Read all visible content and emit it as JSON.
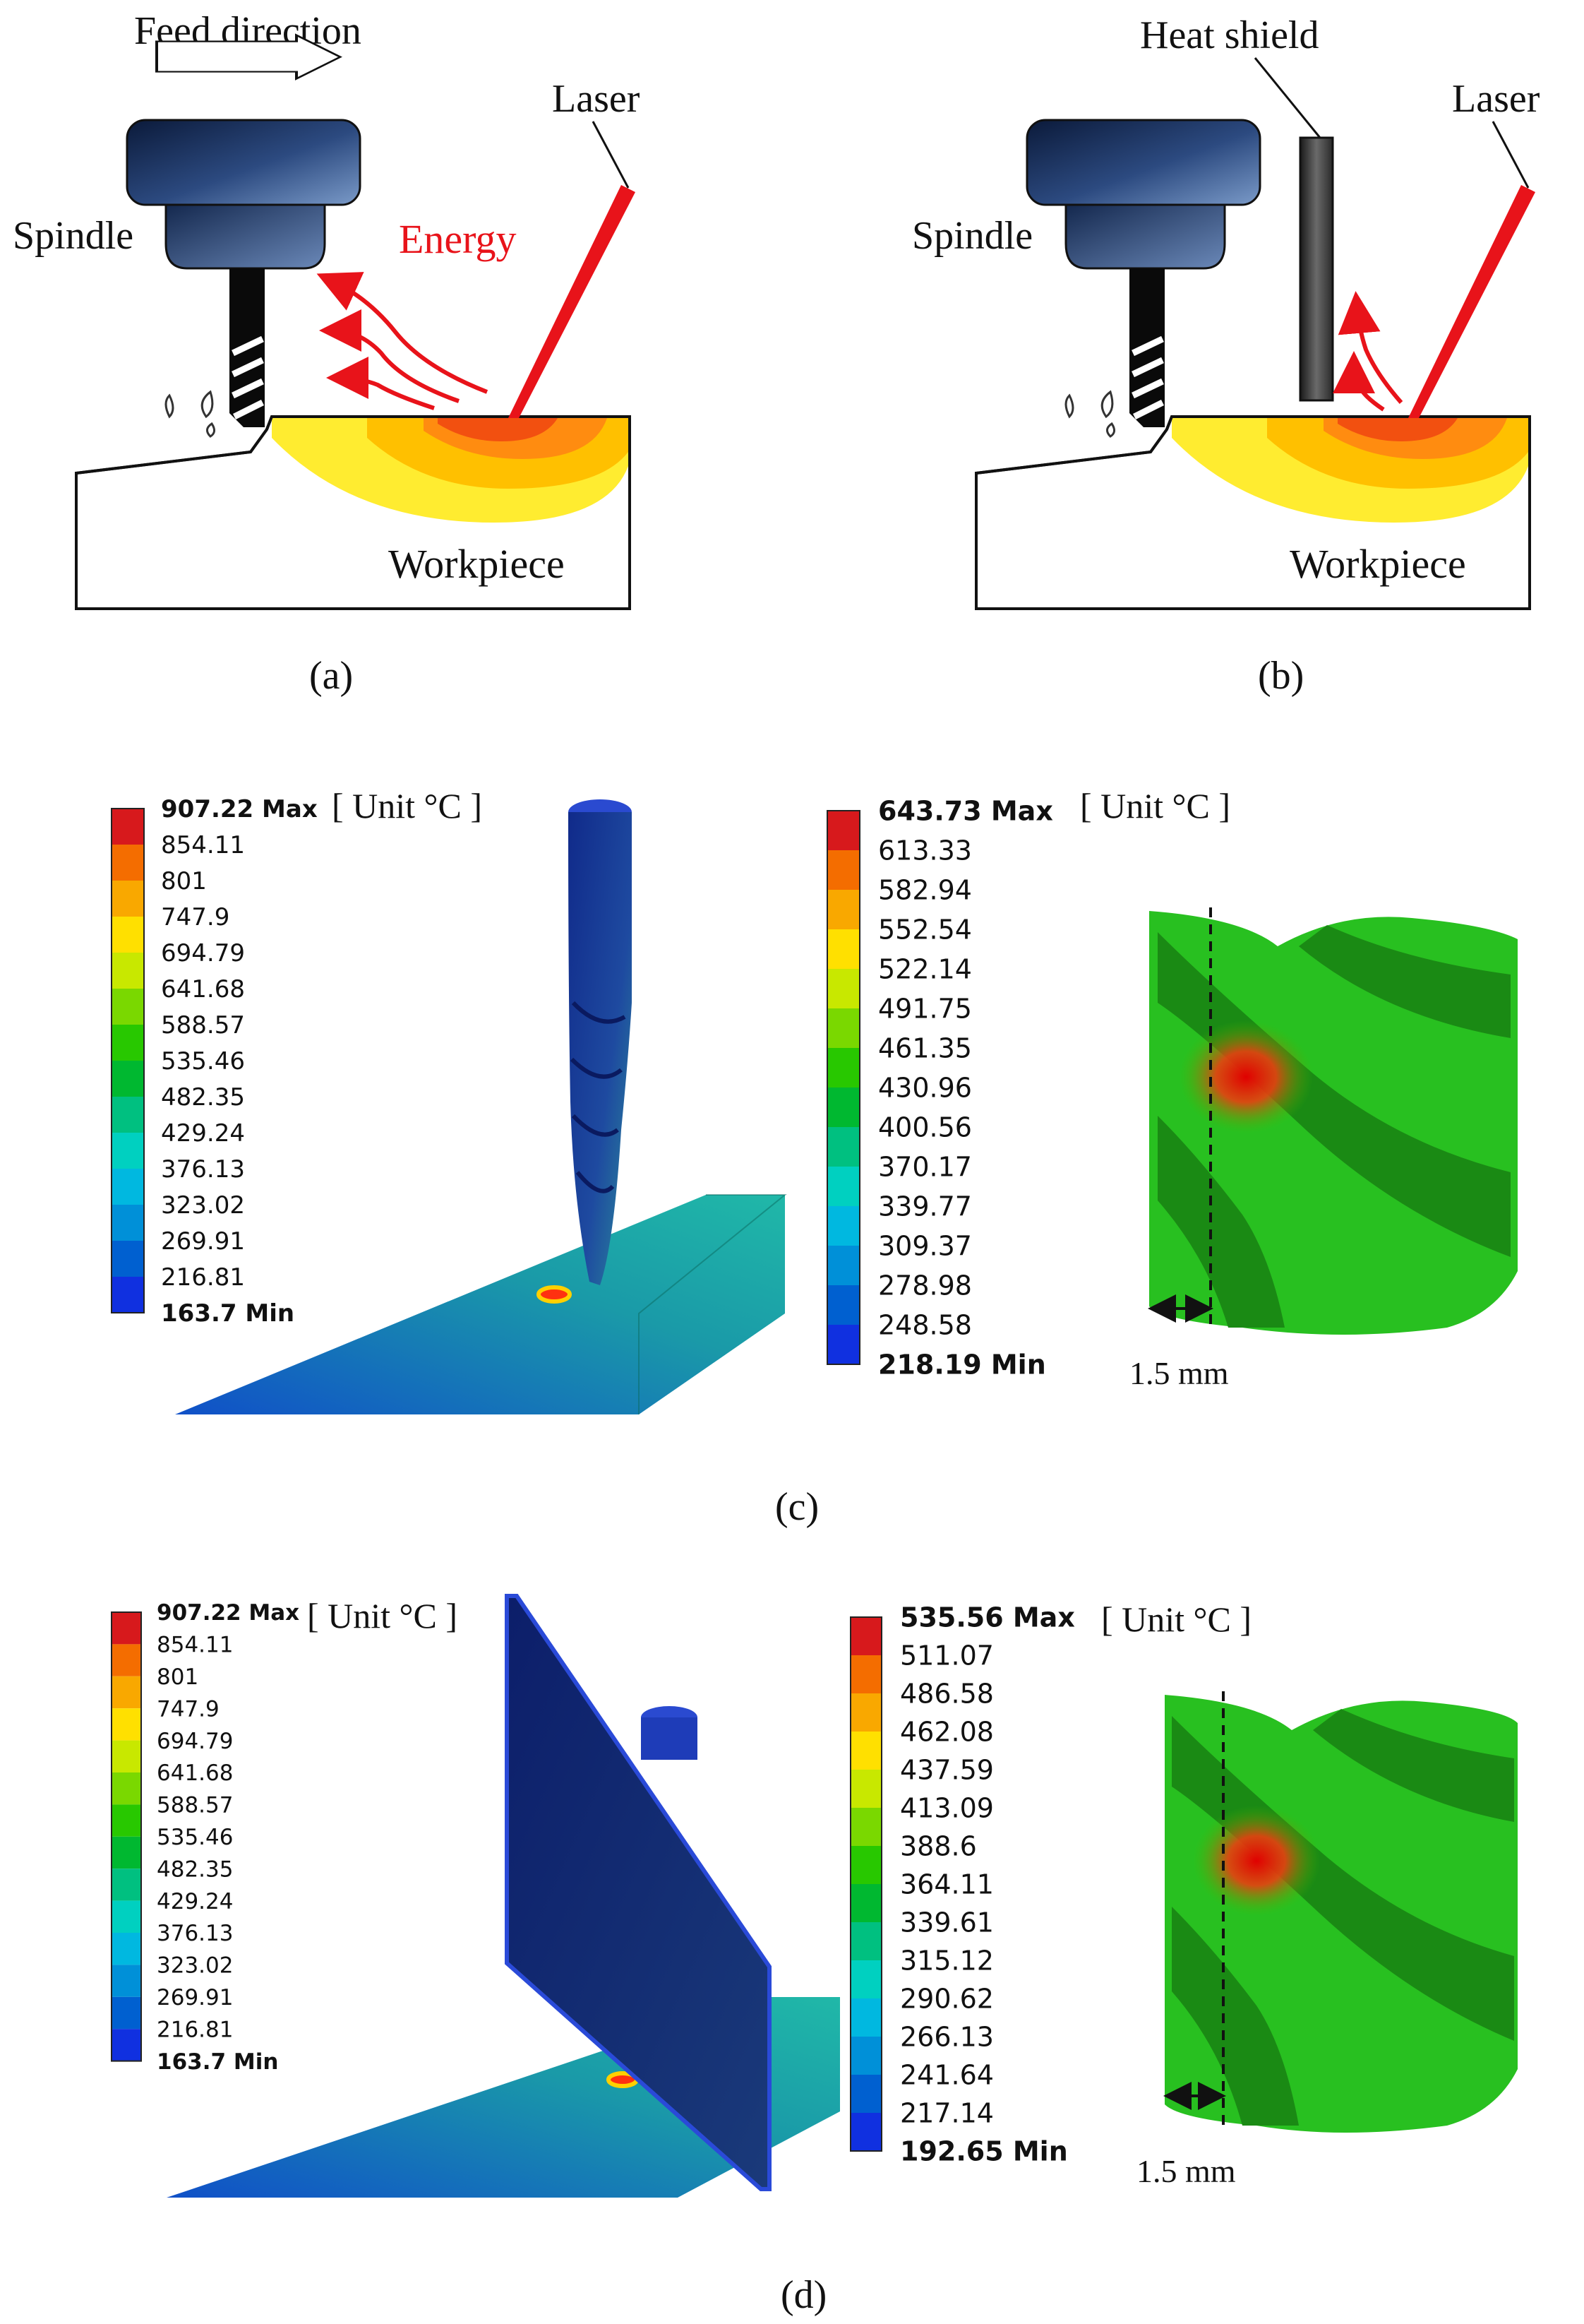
{
  "panel_a": {
    "caption": "(a)",
    "feed_direction": "Feed direction",
    "spindle": "Spindle",
    "laser": "Laser",
    "energy": "Energy",
    "workpiece": "Workpiece"
  },
  "panel_b": {
    "caption": "(b)",
    "heat_shield": "Heat shield",
    "spindle": "Spindle",
    "laser": "Laser",
    "workpiece": "Workpiece"
  },
  "panel_c": {
    "caption": "(c)",
    "unit": "[ Unit °C ]",
    "dimension": "1.5 mm",
    "legend_workpiece": [
      "907.22 Max",
      "854.11",
      "801",
      "747.9",
      "694.79",
      "641.68",
      "588.57",
      "535.46",
      "482.35",
      "429.24",
      "376.13",
      "323.02",
      "269.91",
      "216.81",
      "163.7 Min"
    ],
    "legend_tool": [
      "643.73 Max",
      "613.33",
      "582.94",
      "552.54",
      "522.14",
      "491.75",
      "461.35",
      "430.96",
      "400.56",
      "370.17",
      "339.77",
      "309.37",
      "278.98",
      "248.58",
      "218.19 Min"
    ]
  },
  "panel_d": {
    "caption": "(d)",
    "unit": "[ Unit °C ]",
    "dimension": "1.5 mm",
    "legend_workpiece": [
      "907.22 Max",
      "854.11",
      "801",
      "747.9",
      "694.79",
      "641.68",
      "588.57",
      "535.46",
      "482.35",
      "429.24",
      "376.13",
      "323.02",
      "269.91",
      "216.81",
      "163.7 Min"
    ],
    "legend_tool": [
      "535.56 Max",
      "511.07",
      "486.58",
      "462.08",
      "437.59",
      "413.09",
      "388.6",
      "364.11",
      "339.61",
      "315.12",
      "290.62",
      "266.13",
      "241.64",
      "217.14",
      "192.65 Min"
    ]
  },
  "colors": {
    "scale": [
      "#d7191c",
      "#f46d00",
      "#f9a800",
      "#ffe000",
      "#c8e800",
      "#7ad800",
      "#28c800",
      "#00b830",
      "#00c080",
      "#00d0c0",
      "#00b8e0",
      "#0090d8",
      "#0060d0",
      "#1030e0"
    ],
    "laser": "#e8131a",
    "energy": "#e8131a",
    "spindle_dark": "#0b1a3a",
    "spindle_light": "#5a7ab0"
  }
}
